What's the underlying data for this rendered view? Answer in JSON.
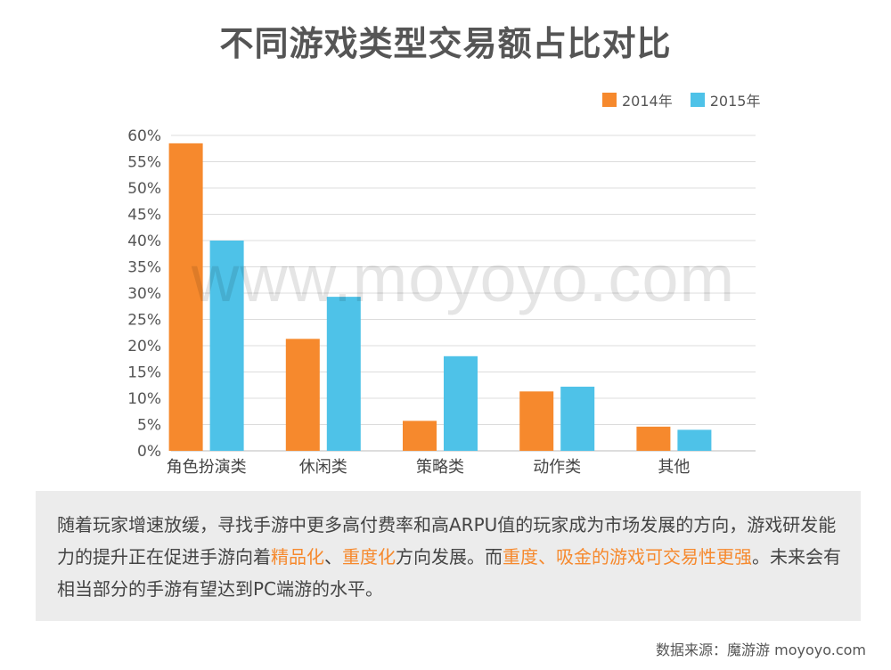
{
  "title": "不同游戏类型交易额占比对比",
  "legend": [
    {
      "label": "2014年",
      "color": "#f6892d"
    },
    {
      "label": "2015年",
      "color": "#4ec2e8"
    }
  ],
  "watermark": "www.moyoyo.com",
  "chart_data": {
    "type": "bar",
    "title": "不同游戏类型交易额占比对比",
    "categories": [
      "角色扮演类",
      "休闲类",
      "策略类",
      "动作类",
      "其他"
    ],
    "series": [
      {
        "name": "2014年",
        "values": [
          58.5,
          21.3,
          5.7,
          11.3,
          4.6
        ]
      },
      {
        "name": "2015年",
        "values": [
          40.0,
          29.3,
          18.0,
          12.2,
          4.0
        ]
      }
    ],
    "y_ticks": [
      "0%",
      "5%",
      "10%",
      "15%",
      "20%",
      "25%",
      "30%",
      "35%",
      "40%",
      "45%",
      "50%",
      "55%",
      "60%"
    ],
    "ylim": [
      0,
      60
    ],
    "grid": true,
    "legend_position": "top-right",
    "colors": [
      "#f6892d",
      "#4ec2e8"
    ]
  },
  "note": {
    "t1": "随着玩家增速放缓，寻找手游中更多高付费率和高ARPU值的玩家成为市场发展的方向，游戏研发能力的提升正在促进手游向着",
    "h1": "精品化",
    "t2": "、",
    "h2": "重度化",
    "t3": "方向发展。而",
    "h3": "重度、吸金的游戏可交易性更强",
    "t4": "。未来会有相当部分的手游有望达到PC端游的水平。"
  },
  "source": "数据来源：魔游游 moyoyo.com"
}
